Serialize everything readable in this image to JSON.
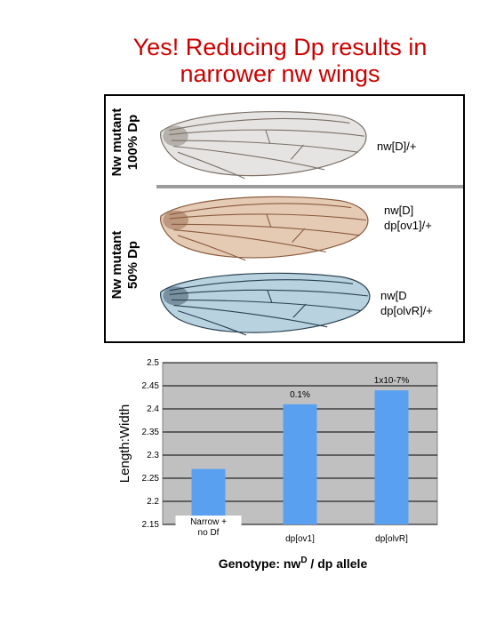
{
  "slide": {
    "title_line1": "Yes! Reducing Dp results in",
    "title_line2": "narrower nw wings"
  },
  "wing_panel": {
    "row_label_top_line1": "Nw mutant",
    "row_label_top_line2": "100% Dp",
    "row_label_bottom_line1": "Nw mutant",
    "row_label_bottom_line2": "50% Dp",
    "genotypes": [
      {
        "line1": "nw[D]/+",
        "line2": "",
        "wing_color": "#e6e4e2",
        "vein_color": "#7a7068"
      },
      {
        "line1": "nw[D]",
        "line2": "dp[ov1]/+",
        "wing_color": "#e5cbb4",
        "vein_color": "#8a5a3e"
      },
      {
        "line1": "nw[D",
        "line2": "dp[olvR]/+",
        "wing_color": "#b8d2e0",
        "vein_color": "#2a4050"
      }
    ]
  },
  "chart_data": {
    "type": "bar",
    "categories": [
      "Narrow + no Df",
      "dp[ov1]",
      "dp[olvR]"
    ],
    "values": [
      2.27,
      2.41,
      2.44
    ],
    "bar_annotations": [
      "",
      "0.1%",
      "1x10-7%"
    ],
    "ylabel": "Length:Width",
    "xlabel": "Genotype: nwD / dp allele",
    "xlabel_pre": "Genotype: nw",
    "xlabel_sup": "D",
    "xlabel_post": " / dp allele",
    "ylim": [
      2.15,
      2.5
    ],
    "yticks": [
      "2.5",
      "2.45",
      "2.4",
      "2.35",
      "2.3",
      "2.25",
      "2.2",
      "2.15"
    ],
    "grid": true,
    "legend": "none",
    "colors": {
      "bar": "#5aa0f0",
      "plot_background": "#c0c0c0",
      "gridline": "#000000"
    }
  }
}
